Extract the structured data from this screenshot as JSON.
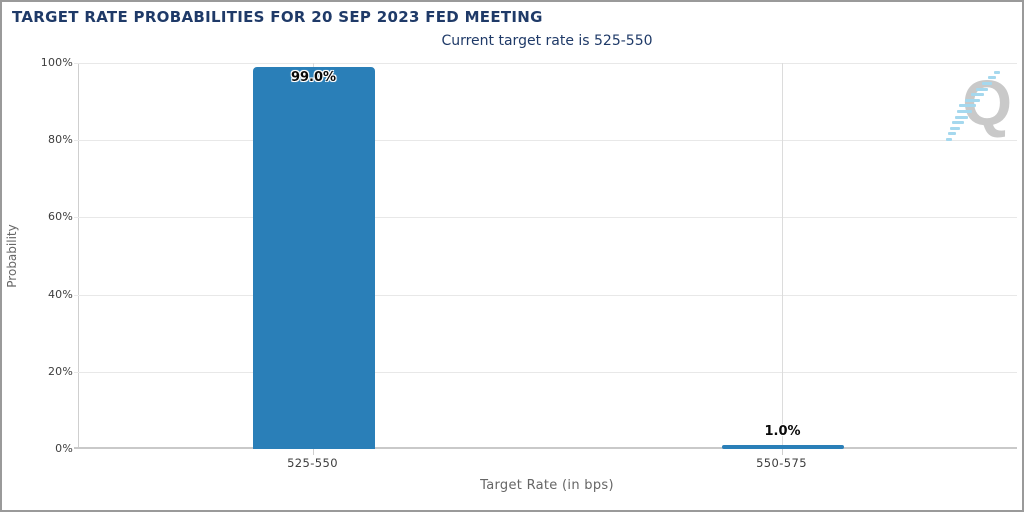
{
  "header": {
    "title": "TARGET RATE PROBABILITIES FOR 20 SEP 2023 FED MEETING",
    "subtitle": "Current target rate is 525-550"
  },
  "watermark": {
    "letter": "Q"
  },
  "chart_data": {
    "type": "bar",
    "title": "TARGET RATE PROBABILITIES FOR 20 SEP 2023 FED MEETING",
    "subtitle": "Current target rate is 525-550",
    "categories": [
      "525-550",
      "550-575"
    ],
    "values": [
      99.0,
      1.0
    ],
    "value_labels": [
      "99.0%",
      "1.0%"
    ],
    "xlabel": "Target Rate (in bps)",
    "ylabel": "Probability",
    "ylim": [
      0,
      100
    ],
    "yticks": [
      "0%",
      "20%",
      "40%",
      "60%",
      "80%",
      "100%"
    ],
    "grid": true,
    "legend_position": "none",
    "bar_color": "#2a7fb8",
    "title_color": "#1f3a68",
    "grid_color": "#e8e8e8",
    "baseline_color": "#c9c9c9",
    "tick_label_color": "#3d3d3d",
    "axis_title_color": "#666666"
  }
}
